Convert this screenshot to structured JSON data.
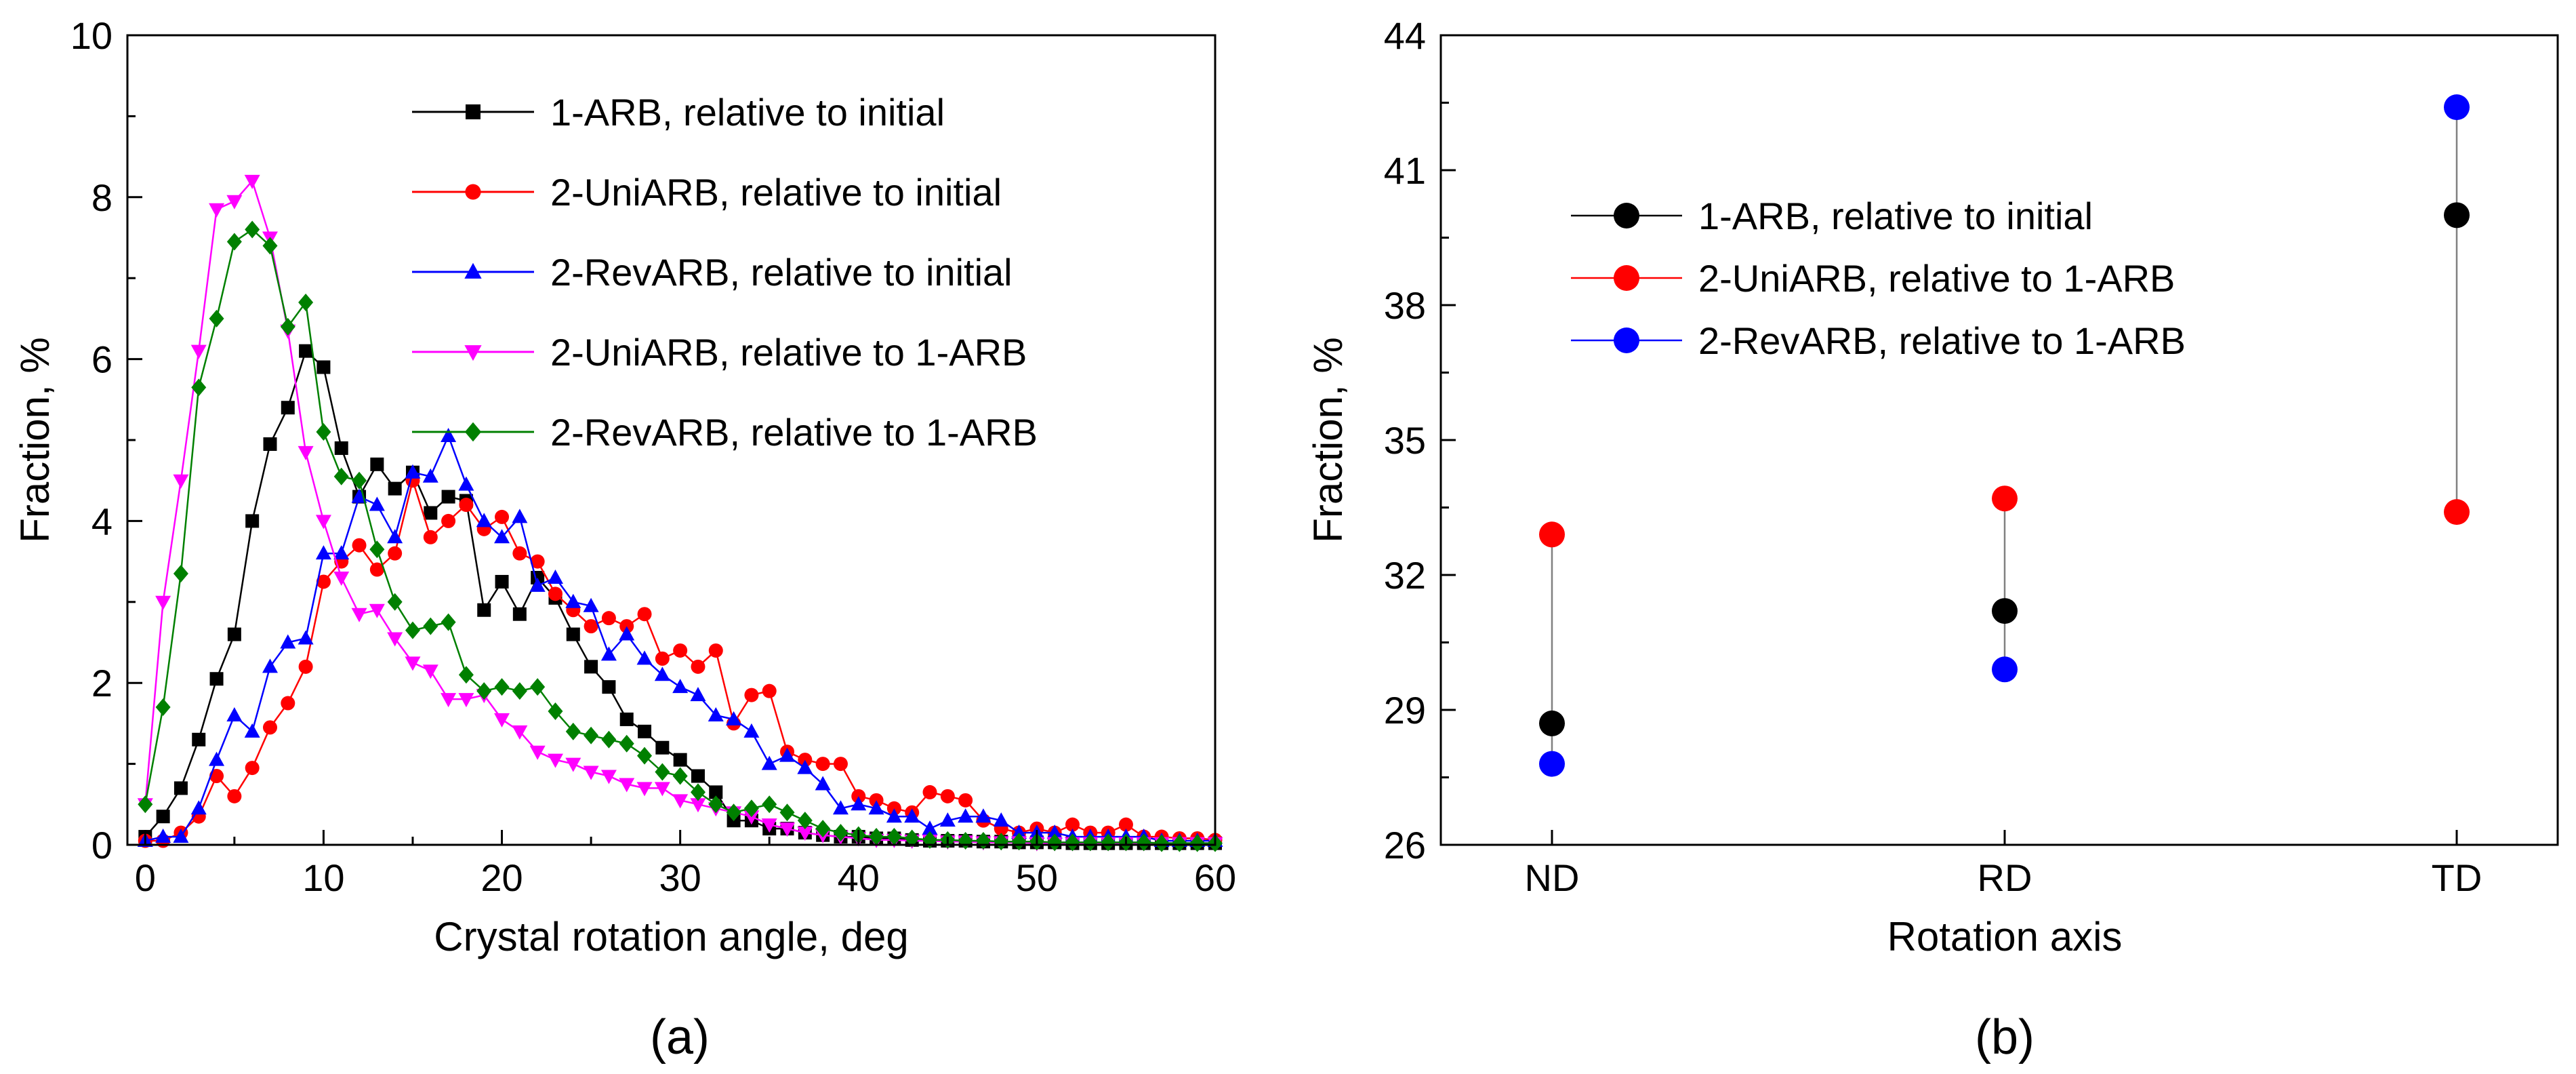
{
  "chart_data": [
    {
      "type": "line",
      "panel_label": "(a)",
      "xlabel": "Crystal rotation angle, deg",
      "ylabel": "Fraction, %",
      "xlim": [
        -1,
        60
      ],
      "ylim": [
        0,
        10
      ],
      "xticks": [
        0,
        10,
        20,
        30,
        40,
        50,
        60
      ],
      "yticks": [
        0,
        2,
        4,
        6,
        8,
        10
      ],
      "legend_position": "top-right",
      "series": [
        {
          "name": "1-ARB, relative to initial",
          "color": "#000000",
          "marker": "square",
          "x": [
            0,
            1,
            2,
            3,
            4,
            5,
            6,
            7,
            8,
            9,
            10,
            11,
            12,
            13,
            14,
            15,
            16,
            17,
            18,
            19,
            20,
            21,
            22,
            23,
            24,
            25,
            26,
            27,
            28,
            29,
            30,
            31,
            32,
            33,
            34,
            35,
            36,
            37,
            38,
            39,
            40,
            41,
            42,
            43,
            44,
            45,
            46,
            47,
            48,
            49,
            50,
            51,
            52,
            53,
            54,
            55,
            56,
            57,
            58,
            59,
            60
          ],
          "y": [
            0.1,
            0.35,
            0.7,
            1.3,
            2.05,
            2.6,
            4.0,
            4.95,
            5.4,
            6.1,
            5.9,
            4.9,
            4.3,
            4.7,
            4.4,
            4.6,
            4.1,
            4.3,
            4.25,
            2.9,
            3.25,
            2.85,
            3.3,
            3.05,
            2.6,
            2.2,
            1.95,
            1.55,
            1.4,
            1.2,
            1.05,
            0.85,
            0.65,
            0.3,
            0.3,
            0.2,
            0.2,
            0.15,
            0.12,
            0.1,
            0.1,
            0.08,
            0.08,
            0.06,
            0.05,
            0.05,
            0.05,
            0.04,
            0.04,
            0.03,
            0.03,
            0.03,
            0.02,
            0.02,
            0.02,
            0.02,
            0.02,
            0.02,
            0.02,
            0.02,
            0.02
          ]
        },
        {
          "name": "2-UniARB, relative to initial",
          "color": "#ff0000",
          "marker": "circle",
          "x": [
            0,
            1,
            2,
            3,
            4,
            5,
            6,
            7,
            8,
            9,
            10,
            11,
            12,
            13,
            14,
            15,
            16,
            17,
            18,
            19,
            20,
            21,
            22,
            23,
            24,
            25,
            26,
            27,
            28,
            29,
            30,
            31,
            32,
            33,
            34,
            35,
            36,
            37,
            38,
            39,
            40,
            41,
            42,
            43,
            44,
            45,
            46,
            47,
            48,
            49,
            50,
            51,
            52,
            53,
            54,
            55,
            56,
            57,
            58,
            59,
            60
          ],
          "y": [
            0.05,
            0.05,
            0.15,
            0.35,
            0.85,
            0.6,
            0.95,
            1.45,
            1.75,
            2.2,
            3.25,
            3.5,
            3.7,
            3.4,
            3.6,
            4.5,
            3.8,
            4.0,
            4.2,
            3.9,
            4.05,
            3.6,
            3.5,
            3.1,
            2.9,
            2.7,
            2.8,
            2.7,
            2.85,
            2.3,
            2.4,
            2.2,
            2.4,
            1.5,
            1.85,
            1.9,
            1.15,
            1.05,
            1.0,
            1.0,
            0.6,
            0.55,
            0.45,
            0.4,
            0.65,
            0.6,
            0.55,
            0.3,
            0.2,
            0.15,
            0.2,
            0.15,
            0.25,
            0.15,
            0.15,
            0.25,
            0.1,
            0.1,
            0.08,
            0.08,
            0.06
          ]
        },
        {
          "name": "2-RevARB, relative to initial",
          "color": "#0000ff",
          "marker": "triangle-up",
          "x": [
            0,
            1,
            2,
            3,
            4,
            5,
            6,
            7,
            8,
            9,
            10,
            11,
            12,
            13,
            14,
            15,
            16,
            17,
            18,
            19,
            20,
            21,
            22,
            23,
            24,
            25,
            26,
            27,
            28,
            29,
            30,
            31,
            32,
            33,
            34,
            35,
            36,
            37,
            38,
            39,
            40,
            41,
            42,
            43,
            44,
            45,
            46,
            47,
            48,
            49,
            50,
            51,
            52,
            53,
            54,
            55,
            56,
            57,
            58,
            59,
            60
          ],
          "y": [
            0.05,
            0.1,
            0.1,
            0.45,
            1.05,
            1.6,
            1.4,
            2.2,
            2.5,
            2.55,
            3.6,
            3.6,
            4.3,
            4.2,
            3.8,
            4.6,
            4.55,
            5.05,
            4.45,
            4.0,
            3.8,
            4.05,
            3.2,
            3.3,
            3.0,
            2.95,
            2.35,
            2.6,
            2.3,
            2.1,
            1.95,
            1.85,
            1.6,
            1.55,
            1.4,
            1.0,
            1.1,
            0.95,
            0.75,
            0.45,
            0.5,
            0.45,
            0.35,
            0.35,
            0.2,
            0.3,
            0.35,
            0.35,
            0.3,
            0.15,
            0.15,
            0.15,
            0.1,
            0.1,
            0.1,
            0.1,
            0.1,
            0.05,
            0.05,
            0.05,
            0.05
          ]
        },
        {
          "name": "2-UniARB, relative to 1-ARB",
          "color": "#ff00ff",
          "marker": "triangle-down",
          "x": [
            0,
            1,
            2,
            3,
            4,
            5,
            6,
            7,
            8,
            9,
            10,
            11,
            12,
            13,
            14,
            15,
            16,
            17,
            18,
            19,
            20,
            21,
            22,
            23,
            24,
            25,
            26,
            27,
            28,
            29,
            30,
            31,
            32,
            33,
            34,
            35,
            36,
            37,
            38,
            39,
            40,
            41,
            42,
            43,
            44,
            45,
            46,
            47,
            48,
            49,
            50,
            51,
            52,
            53,
            54,
            55,
            56,
            57,
            58,
            59,
            60
          ],
          "y": [
            0.5,
            3.0,
            4.5,
            6.1,
            7.85,
            7.95,
            8.2,
            7.5,
            6.35,
            4.85,
            4.0,
            3.3,
            2.85,
            2.9,
            2.55,
            2.25,
            2.15,
            1.8,
            1.8,
            1.85,
            1.55,
            1.4,
            1.15,
            1.05,
            1.0,
            0.9,
            0.85,
            0.75,
            0.7,
            0.7,
            0.55,
            0.5,
            0.45,
            0.4,
            0.35,
            0.25,
            0.2,
            0.15,
            0.12,
            0.1,
            0.08,
            0.06,
            0.06,
            0.05,
            0.05,
            0.04,
            0.04,
            0.03,
            0.03,
            0.03,
            0.02,
            0.02,
            0.02,
            0.02,
            0.02,
            0.02,
            0.02,
            0.02,
            0.02,
            0.02,
            0.02
          ]
        },
        {
          "name": "2-RevARB, relative to 1-ARB",
          "color": "#008000",
          "marker": "diamond",
          "x": [
            0,
            1,
            2,
            3,
            4,
            5,
            6,
            7,
            8,
            9,
            10,
            11,
            12,
            13,
            14,
            15,
            16,
            17,
            18,
            19,
            20,
            21,
            22,
            23,
            24,
            25,
            26,
            27,
            28,
            29,
            30,
            31,
            32,
            33,
            34,
            35,
            36,
            37,
            38,
            39,
            40,
            41,
            42,
            43,
            44,
            45,
            46,
            47,
            48,
            49,
            50,
            51,
            52,
            53,
            54,
            55,
            56,
            57,
            58,
            59,
            60
          ],
          "y": [
            0.5,
            1.7,
            3.35,
            5.65,
            6.5,
            7.45,
            7.6,
            7.4,
            6.4,
            6.7,
            5.1,
            4.55,
            4.5,
            3.65,
            3.0,
            2.65,
            2.7,
            2.75,
            2.1,
            1.9,
            1.95,
            1.9,
            1.95,
            1.65,
            1.4,
            1.35,
            1.3,
            1.25,
            1.1,
            0.9,
            0.85,
            0.65,
            0.5,
            0.4,
            0.45,
            0.5,
            0.4,
            0.3,
            0.2,
            0.15,
            0.12,
            0.1,
            0.1,
            0.08,
            0.06,
            0.06,
            0.05,
            0.05,
            0.04,
            0.04,
            0.04,
            0.03,
            0.03,
            0.03,
            0.03,
            0.03,
            0.03,
            0.02,
            0.02,
            0.02,
            0.02
          ]
        }
      ]
    },
    {
      "type": "scatter",
      "panel_label": "(b)",
      "xlabel": "Rotation axis",
      "ylabel": "Fraction, %",
      "categories": [
        "ND",
        "RD",
        "TD"
      ],
      "ylim": [
        26,
        44
      ],
      "yticks": [
        26,
        29,
        32,
        35,
        38,
        41,
        44
      ],
      "legend_position": "top-left",
      "series": [
        {
          "name": "1-ARB, relative to initial",
          "color": "#000000",
          "marker": "circle",
          "values": [
            28.7,
            31.2,
            40.0
          ]
        },
        {
          "name": "2-UniARB, relative to 1-ARB",
          "color": "#ff0000",
          "marker": "circle",
          "values": [
            32.9,
            33.7,
            33.4
          ]
        },
        {
          "name": "2-RevARB, relative to 1-ARB",
          "color": "#0000ff",
          "marker": "circle",
          "values": [
            27.8,
            29.9,
            42.4
          ]
        }
      ]
    }
  ]
}
